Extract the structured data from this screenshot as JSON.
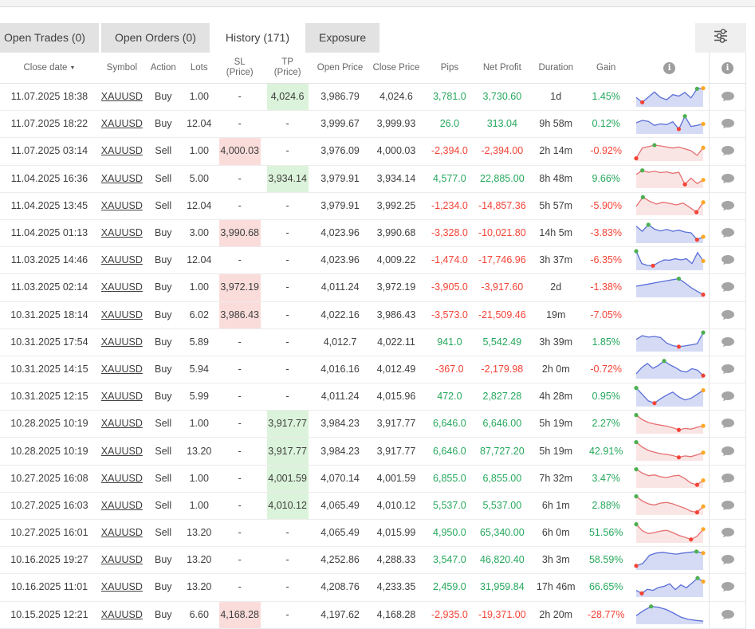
{
  "tab_bar": {
    "tabs": [
      {
        "id": "open-trades",
        "label": "Open Trades (0)",
        "active": false
      },
      {
        "id": "open-orders",
        "label": "Open Orders (0)",
        "active": false
      },
      {
        "id": "history",
        "label": "History (171)",
        "active": true
      },
      {
        "id": "exposure",
        "label": "Exposure",
        "active": false
      }
    ],
    "filter_icon": "filter-sliders-icon"
  },
  "table": {
    "columns": [
      {
        "key": "close_date",
        "label": "Close date",
        "sortable": true
      },
      {
        "key": "symbol",
        "label": "Symbol"
      },
      {
        "key": "action",
        "label": "Action"
      },
      {
        "key": "lots",
        "label": "Lots"
      },
      {
        "key": "sl",
        "line1": "SL",
        "line2": "(Price)"
      },
      {
        "key": "tp",
        "line1": "TP",
        "line2": "(Price)"
      },
      {
        "key": "open",
        "label": "Open Price"
      },
      {
        "key": "close",
        "label": "Close Price"
      },
      {
        "key": "pips",
        "label": "Pips"
      },
      {
        "key": "net",
        "label": "Net Profit"
      },
      {
        "key": "duration",
        "label": "Duration"
      },
      {
        "key": "gain",
        "label": "Gain"
      },
      {
        "key": "chart",
        "label": "",
        "info_icon": true
      },
      {
        "key": "comment",
        "label": "",
        "info_icon": true
      }
    ],
    "rows": [
      {
        "date": "11.07.2025 18:38",
        "symbol": "XAUUSD",
        "action": "Buy",
        "lots": "1.00",
        "sl": "-",
        "tp": "4,024.6",
        "sl_hl": false,
        "tp_hl": true,
        "open": "3,986.79",
        "close": "4,024.6",
        "pips": "3,781.0",
        "net": "3,730.60",
        "duration": "1d",
        "gain": "1.45%",
        "spark": {
          "c": "blue",
          "p": [
            42,
            16,
            45,
            72,
            42,
            30,
            58,
            50,
            70,
            40,
            90,
            93
          ],
          "d": [
            [
              1,
              "red"
            ],
            [
              10,
              "green"
            ],
            [
              11,
              "orange"
            ]
          ]
        }
      },
      {
        "date": "11.07.2025 18:22",
        "symbol": "XAUUSD",
        "action": "Buy",
        "lots": "12.04",
        "sl": "-",
        "tp": "-",
        "sl_hl": false,
        "tp_hl": false,
        "open": "3,999.67",
        "close": "3,999.93",
        "pips": "26.0",
        "net": "313.04",
        "duration": "9h 58m",
        "gain": "0.12%",
        "spark": {
          "c": "blue",
          "p": [
            52,
            65,
            60,
            38,
            46,
            42,
            58,
            18,
            88,
            32,
            38,
            46
          ],
          "d": [
            [
              7,
              "red"
            ],
            [
              8,
              "green"
            ],
            [
              11,
              "orange"
            ]
          ]
        }
      },
      {
        "date": "11.07.2025 03:14",
        "symbol": "XAUUSD",
        "action": "Sell",
        "lots": "1.00",
        "sl": "4,000.03",
        "tp": "-",
        "sl_hl": true,
        "tp_hl": false,
        "open": "3,976.09",
        "close": "4,000.03",
        "pips": "-2,394.0",
        "net": "-2,394.00",
        "duration": "2h 14m",
        "gain": "-0.92%",
        "spark": {
          "c": "red",
          "p": [
            6,
            62,
            70,
            78,
            74,
            68,
            62,
            68,
            58,
            48,
            22,
            64
          ],
          "d": [
            [
              0,
              "red"
            ],
            [
              3,
              "green"
            ],
            [
              11,
              "orange"
            ]
          ]
        }
      },
      {
        "date": "11.04.2025 16:36",
        "symbol": "XAUUSD",
        "action": "Sell",
        "lots": "5.00",
        "sl": "-",
        "tp": "3,934.14",
        "sl_hl": false,
        "tp_hl": true,
        "open": "3,979.91",
        "close": "3,934.14",
        "pips": "4,577.0",
        "net": "22,885.00",
        "duration": "8h 48m",
        "gain": "9.66%",
        "spark": {
          "c": "red",
          "p": [
            66,
            88,
            78,
            83,
            76,
            80,
            72,
            78,
            12,
            46,
            16,
            36
          ],
          "d": [
            [
              1,
              "green"
            ],
            [
              8,
              "red"
            ],
            [
              11,
              "orange"
            ]
          ]
        }
      },
      {
        "date": "11.04.2025 13:45",
        "symbol": "XAUUSD",
        "action": "Sell",
        "lots": "12.04",
        "sl": "-",
        "tp": "-",
        "sl_hl": false,
        "tp_hl": false,
        "open": "3,979.91",
        "close": "3,992.25",
        "pips": "-1,234.0",
        "net": "-14,857.36",
        "duration": "5h 57m",
        "gain": "-5.90%",
        "spark": {
          "c": "red",
          "p": [
            40,
            90,
            68,
            52,
            62,
            56,
            48,
            58,
            34,
            8,
            62
          ],
          "d": [
            [
              1,
              "green"
            ],
            [
              9,
              "red"
            ],
            [
              10,
              "orange"
            ]
          ]
        }
      },
      {
        "date": "11.04.2025 01:13",
        "symbol": "XAUUSD",
        "action": "Buy",
        "lots": "3.00",
        "sl": "3,990.68",
        "tp": "-",
        "sl_hl": true,
        "tp_hl": false,
        "open": "4,023.96",
        "close": "3,990.68",
        "pips": "-3,328.0",
        "net": "-10,021.80",
        "duration": "14h 5m",
        "gain": "-3.83%",
        "spark": {
          "c": "blue",
          "p": [
            84,
            56,
            92,
            68,
            58,
            66,
            56,
            62,
            52,
            48,
            10,
            26
          ],
          "d": [
            [
              2,
              "green"
            ],
            [
              10,
              "red"
            ],
            [
              11,
              "orange"
            ]
          ]
        }
      },
      {
        "date": "11.03.2025 14:46",
        "symbol": "XAUUSD",
        "action": "Buy",
        "lots": "12.04",
        "sl": "-",
        "tp": "-",
        "sl_hl": false,
        "tp_hl": false,
        "open": "4,023.96",
        "close": "4,009.22",
        "pips": "-1,474.0",
        "net": "-17,746.96",
        "duration": "3h 37m",
        "gain": "-6.35%",
        "spark": {
          "c": "blue",
          "p": [
            95,
            28,
            18,
            16,
            34,
            48,
            46,
            54,
            48,
            54,
            28,
            88,
            42
          ],
          "d": [
            [
              0,
              "green"
            ],
            [
              3,
              "red"
            ],
            [
              12,
              "orange"
            ]
          ]
        }
      },
      {
        "date": "11.03.2025 02:14",
        "symbol": "XAUUSD",
        "action": "Buy",
        "lots": "1.00",
        "sl": "3,972.19",
        "tp": "-",
        "sl_hl": true,
        "tp_hl": false,
        "open": "4,011.24",
        "close": "3,972.19",
        "pips": "-3,905.0",
        "net": "-3,917.60",
        "duration": "2d",
        "gain": "-1.38%",
        "spark": {
          "c": "blue",
          "p": [
            52,
            58,
            64,
            70,
            76,
            82,
            88,
            93,
            70,
            45,
            25,
            6
          ],
          "d": [
            [
              7,
              "green"
            ],
            [
              11,
              "red"
            ]
          ]
        }
      },
      {
        "date": "10.31.2025 18:14",
        "symbol": "XAUUSD",
        "action": "Buy",
        "lots": "6.02",
        "sl": "3,986.43",
        "tp": "-",
        "sl_hl": true,
        "tp_hl": false,
        "open": "4,022.16",
        "close": "3,986.43",
        "pips": "-3,573.0",
        "net": "-21,509.46",
        "duration": "19m",
        "gain": "-7.05%",
        "spark": null
      },
      {
        "date": "10.31.2025 17:54",
        "symbol": "XAUUSD",
        "action": "Buy",
        "lots": "5.89",
        "sl": "-",
        "tp": "-",
        "sl_hl": false,
        "tp_hl": false,
        "open": "4,012.7",
        "close": "4,022.11",
        "pips": "941.0",
        "net": "5,542.49",
        "duration": "3h 39m",
        "gain": "1.85%",
        "spark": {
          "c": "blue",
          "p": [
            58,
            78,
            70,
            74,
            68,
            38,
            24,
            18,
            22,
            28,
            34,
            95
          ],
          "d": [
            [
              7,
              "red"
            ],
            [
              11,
              "green"
            ]
          ]
        }
      },
      {
        "date": "10.31.2025 14:15",
        "symbol": "XAUUSD",
        "action": "Buy",
        "lots": "5.94",
        "sl": "-",
        "tp": "-",
        "sl_hl": false,
        "tp_hl": false,
        "open": "4,016.16",
        "close": "4,012.49",
        "pips": "-367.0",
        "net": "-2,179.98",
        "duration": "2h 0m",
        "gain": "-0.72%",
        "spark": {
          "c": "blue",
          "p": [
            18,
            52,
            74,
            48,
            64,
            88,
            68,
            52,
            34,
            28,
            46,
            38,
            8
          ],
          "d": [
            [
              5,
              "green"
            ],
            [
              12,
              "red"
            ]
          ]
        }
      },
      {
        "date": "10.31.2025 12:15",
        "symbol": "XAUUSD",
        "action": "Buy",
        "lots": "5.99",
        "sl": "-",
        "tp": "-",
        "sl_hl": false,
        "tp_hl": false,
        "open": "4,011.24",
        "close": "4,015.96",
        "pips": "472.0",
        "net": "2,827.28",
        "duration": "4h 28m",
        "gain": "0.95%",
        "spark": {
          "c": "blue",
          "p": [
            93,
            58,
            22,
            10,
            34,
            54,
            70,
            44,
            28,
            36,
            58,
            80
          ],
          "d": [
            [
              0,
              "green"
            ],
            [
              3,
              "red"
            ],
            [
              11,
              "orange"
            ]
          ]
        }
      },
      {
        "date": "10.28.2025 10:19",
        "symbol": "XAUUSD",
        "action": "Sell",
        "lots": "1.00",
        "sl": "-",
        "tp": "3,917.77",
        "sl_hl": false,
        "tp_hl": true,
        "open": "3,984.23",
        "close": "3,917.77",
        "pips": "6,646.0",
        "net": "6,646.00",
        "duration": "5h 19m",
        "gain": "2.27%",
        "spark": {
          "c": "red",
          "p": [
            93,
            68,
            52,
            44,
            38,
            32,
            24,
            12,
            20,
            16,
            26,
            34
          ],
          "d": [
            [
              0,
              "green"
            ],
            [
              7,
              "red"
            ],
            [
              11,
              "orange"
            ]
          ]
        }
      },
      {
        "date": "10.28.2025 10:19",
        "symbol": "XAUUSD",
        "action": "Sell",
        "lots": "13.20",
        "sl": "-",
        "tp": "3,917.77",
        "sl_hl": false,
        "tp_hl": true,
        "open": "3,984.23",
        "close": "3,917.77",
        "pips": "6,646.0",
        "net": "87,727.20",
        "duration": "5h 19m",
        "gain": "42.91%",
        "spark": {
          "c": "red",
          "p": [
            93,
            66,
            48,
            38,
            30,
            26,
            20,
            10,
            18,
            14,
            24,
            36
          ],
          "d": [
            [
              0,
              "green"
            ],
            [
              7,
              "red"
            ],
            [
              11,
              "orange"
            ]
          ]
        }
      },
      {
        "date": "10.27.2025 16:08",
        "symbol": "XAUUSD",
        "action": "Sell",
        "lots": "1.00",
        "sl": "-",
        "tp": "4,001.59",
        "sl_hl": false,
        "tp_hl": true,
        "open": "4,070.14",
        "close": "4,001.59",
        "pips": "6,855.0",
        "net": "6,855.00",
        "duration": "7h 32m",
        "gain": "3.47%",
        "spark": {
          "c": "red",
          "p": [
            93,
            72,
            58,
            62,
            52,
            48,
            56,
            60,
            42,
            18,
            8,
            32
          ],
          "d": [
            [
              0,
              "green"
            ],
            [
              10,
              "red"
            ],
            [
              11,
              "orange"
            ]
          ]
        }
      },
      {
        "date": "10.27.2025 16:03",
        "symbol": "XAUUSD",
        "action": "Sell",
        "lots": "1.00",
        "sl": "-",
        "tp": "4,010.12",
        "sl_hl": false,
        "tp_hl": true,
        "open": "4,065.49",
        "close": "4,010.12",
        "pips": "5,537.0",
        "net": "5,537.00",
        "duration": "6h 1m",
        "gain": "2.88%",
        "spark": {
          "c": "red",
          "p": [
            93,
            68,
            52,
            46,
            56,
            60,
            52,
            40,
            28,
            12,
            6,
            38
          ],
          "d": [
            [
              0,
              "green"
            ],
            [
              10,
              "red"
            ],
            [
              11,
              "orange"
            ]
          ]
        }
      },
      {
        "date": "10.27.2025 16:01",
        "symbol": "XAUUSD",
        "action": "Sell",
        "lots": "13.20",
        "sl": "-",
        "tp": "-",
        "sl_hl": false,
        "tp_hl": false,
        "open": "4,065.49",
        "close": "4,015.99",
        "pips": "4,950.0",
        "net": "65,340.00",
        "duration": "6h 0m",
        "gain": "51.56%",
        "spark": {
          "c": "red",
          "p": [
            93,
            58,
            42,
            48,
            56,
            60,
            48,
            32,
            22,
            10,
            28,
            66
          ],
          "d": [
            [
              0,
              "green"
            ],
            [
              9,
              "red"
            ],
            [
              11,
              "orange"
            ]
          ]
        }
      },
      {
        "date": "10.16.2025 19:27",
        "symbol": "XAUUSD",
        "action": "Buy",
        "lots": "13.20",
        "sl": "-",
        "tp": "-",
        "sl_hl": false,
        "tp_hl": false,
        "open": "4,252.86",
        "close": "4,288.33",
        "pips": "3,547.0",
        "net": "46,820.40",
        "duration": "3h 3m",
        "gain": "58.59%",
        "spark": {
          "c": "blue",
          "p": [
            14,
            28,
            72,
            84,
            88,
            82,
            78,
            84,
            88,
            92,
            84
          ],
          "d": [
            [
              0,
              "red"
            ],
            [
              9,
              "green"
            ],
            [
              10,
              "orange"
            ]
          ]
        }
      },
      {
        "date": "10.16.2025 11:01",
        "symbol": "XAUUSD",
        "action": "Buy",
        "lots": "13.20",
        "sl": "-",
        "tp": "-",
        "sl_hl": false,
        "tp_hl": false,
        "open": "4,208.76",
        "close": "4,233.35",
        "pips": "2,459.0",
        "net": "31,959.84",
        "duration": "17h 46m",
        "gain": "66.65%",
        "spark": {
          "c": "blue",
          "p": [
            28,
            12,
            34,
            28,
            44,
            50,
            64,
            32,
            58,
            42,
            68,
            95,
            76
          ],
          "d": [
            [
              1,
              "red"
            ],
            [
              11,
              "green"
            ],
            [
              12,
              "orange"
            ]
          ]
        }
      },
      {
        "date": "10.15.2025 12:21",
        "symbol": "XAUUSD",
        "action": "Buy",
        "lots": "6.60",
        "sl": "4,168.28",
        "tp": "-",
        "sl_hl": true,
        "tp_hl": false,
        "open": "4,197.62",
        "close": "4,168.28",
        "pips": "-2,935.0",
        "net": "-19,371.00",
        "duration": "2h 20m",
        "gain": "-28.77%",
        "spark": {
          "c": "blue",
          "p": [
            38,
            66,
            88,
            84,
            72,
            52,
            30,
            18,
            12,
            8
          ],
          "d": [
            [
              2,
              "green"
            ]
          ]
        }
      }
    ]
  },
  "colors": {
    "green": "#26a85d",
    "red": "#f44336",
    "green_bg": "#dbf3da",
    "red_bg": "#fadddb",
    "spark_blue": "#5a6fd8",
    "spark_blue_fill": "rgba(90,111,216,0.25)",
    "spark_red": "#e57070",
    "spark_red_fill": "rgba(229,112,112,0.18)",
    "dot_green": "#4caf50",
    "dot_red": "#f44336",
    "dot_orange": "#ffa726"
  }
}
